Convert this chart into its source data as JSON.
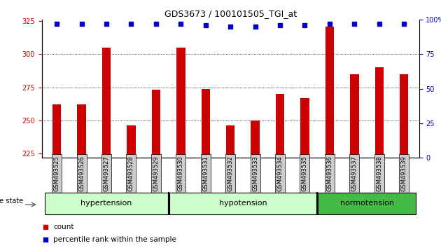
{
  "title": "GDS3673 / 100101505_TGI_at",
  "samples": [
    "GSM493525",
    "GSM493526",
    "GSM493527",
    "GSM493528",
    "GSM493529",
    "GSM493530",
    "GSM493531",
    "GSM493532",
    "GSM493533",
    "GSM493534",
    "GSM493535",
    "GSM493536",
    "GSM493537",
    "GSM493538",
    "GSM493539"
  ],
  "counts": [
    262,
    262,
    305,
    246,
    273,
    305,
    274,
    246,
    250,
    270,
    267,
    321,
    285,
    290,
    285
  ],
  "percentiles": [
    97,
    97,
    97,
    97,
    97,
    97,
    96,
    95,
    95,
    96,
    96,
    97,
    97,
    97,
    97
  ],
  "groups": [
    {
      "label": "hypertension",
      "start": 0,
      "end": 4,
      "color": "#ccffcc"
    },
    {
      "label": "hypotension",
      "start": 5,
      "end": 10,
      "color": "#ccffcc"
    },
    {
      "label": "normotension",
      "start": 11,
      "end": 14,
      "color": "#44bb44"
    }
  ],
  "ylim_left": [
    222,
    326
  ],
  "ylim_right": [
    0,
    100
  ],
  "yticks_left": [
    225,
    250,
    275,
    300,
    325
  ],
  "yticks_right": [
    0,
    25,
    50,
    75,
    100
  ],
  "bar_color": "#cc0000",
  "dot_color": "#0000cc",
  "left_tick_color": "#cc0000",
  "right_tick_color": "#0000cc",
  "xtick_bg": "#cccccc",
  "hyp_color": "#ccffcc",
  "norm_color": "#44bb44"
}
